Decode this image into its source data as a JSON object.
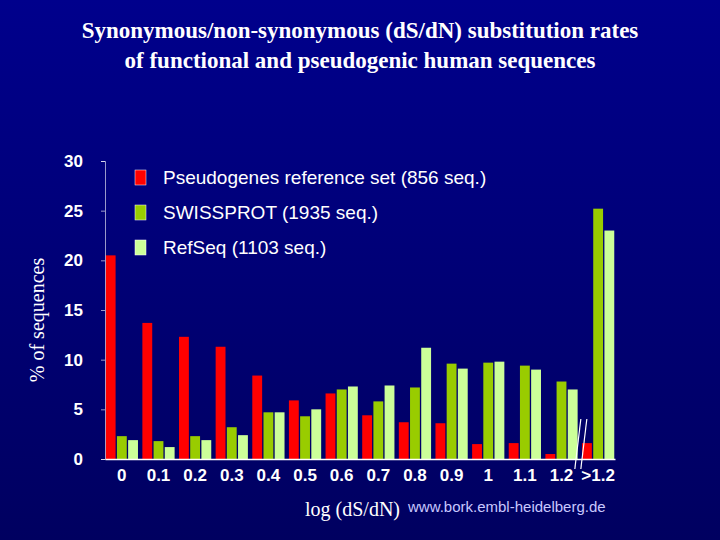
{
  "chart_data": {
    "type": "bar",
    "title": "Synonymous/non-synonymous (dS/dN) substitution rates of functional and pseudogenic human sequences",
    "x_label": "log (dS/dN)",
    "y_label": "% of sequences",
    "annotation": "www.bork.embl-heidelberg.de",
    "categories": [
      "0",
      "0.1",
      "0.2",
      "0.3",
      "0.4",
      "0.5",
      "0.6",
      "0.7",
      "0.8",
      "0.9",
      "1",
      "1.1",
      "1.2",
      ">1.2"
    ],
    "series": [
      {
        "name": "Pseudogenes reference set (856 seq.)",
        "color": "#ff0000",
        "values": [
          20.5,
          13.7,
          12.3,
          11.3,
          8.4,
          5.9,
          6.6,
          4.4,
          3.7,
          3.6,
          1.5,
          1.6,
          0.5,
          1.6
        ]
      },
      {
        "name": "SWISSPROT (1935 seq.)",
        "color": "#99cc00",
        "values": [
          2.3,
          1.8,
          2.3,
          3.2,
          4.7,
          4.3,
          7.0,
          5.8,
          7.2,
          9.6,
          9.7,
          9.4,
          7.8,
          25.2
        ]
      },
      {
        "name": "RefSeq (1103 seq.)",
        "color": "#ccff99",
        "values": [
          1.9,
          1.2,
          1.9,
          2.4,
          4.7,
          5.0,
          7.3,
          7.4,
          11.2,
          9.1,
          9.8,
          9.0,
          7.0,
          23.0
        ]
      }
    ],
    "ylim": [
      0,
      30
    ],
    "yticks": [
      0,
      5,
      10,
      15,
      20,
      25,
      30
    ],
    "grid": false,
    "legend": "upper left"
  }
}
